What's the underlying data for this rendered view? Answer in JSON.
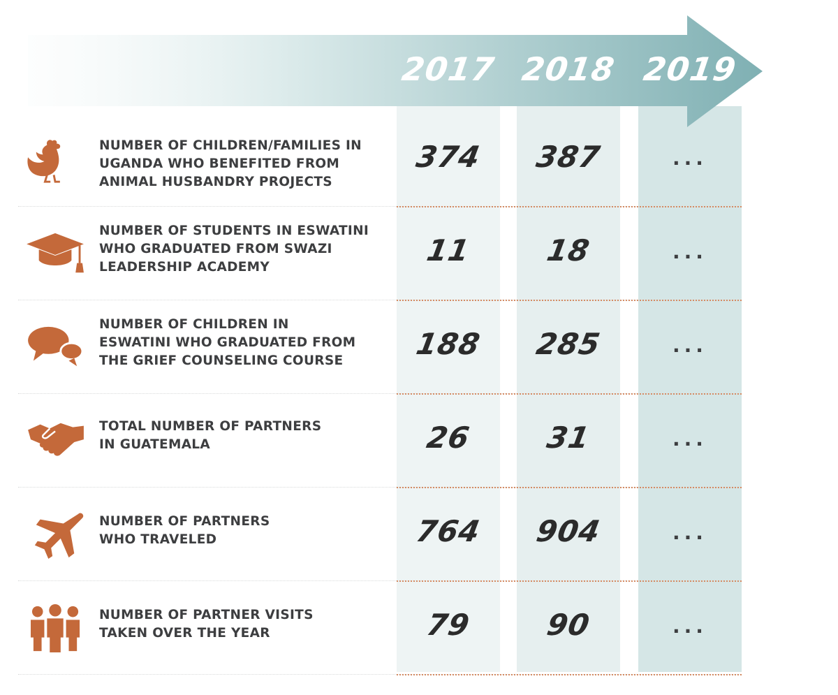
{
  "colors": {
    "accent": "#c4693a",
    "arrow_start": "#f3f8f8",
    "arrow_end": "#7fb0b3",
    "text": "#3d3e40"
  },
  "chart_data": {
    "type": "table",
    "columns": [
      "2017",
      "2018",
      "2019"
    ],
    "rows": [
      {
        "icon": "chicken-icon",
        "label": "NUMBER OF CHILDREN/FAMILIES IN\nUGANDA WHO BENEFITED FROM\nANIMAL HUSBANDRY PROJECTS",
        "values": [
          "374",
          "387",
          "..."
        ]
      },
      {
        "icon": "graduation-cap-icon",
        "label": "NUMBER OF STUDENTS IN ESWATINI\nWHO GRADUATED FROM SWAZI\nLEADERSHIP ACADEMY",
        "values": [
          "11",
          "18",
          "..."
        ]
      },
      {
        "icon": "speech-bubbles-icon",
        "label": "NUMBER OF CHILDREN IN\nESWATINI WHO GRADUATED FROM\nTHE GRIEF COUNSELING COURSE",
        "values": [
          "188",
          "285",
          "..."
        ]
      },
      {
        "icon": "handshake-icon",
        "label": "TOTAL NUMBER OF PARTNERS\nIN GUATEMALA",
        "values": [
          "26",
          "31",
          "..."
        ]
      },
      {
        "icon": "airplane-icon",
        "label": "NUMBER OF PARTNERS\nWHO TRAVELED",
        "values": [
          "764",
          "904",
          "..."
        ]
      },
      {
        "icon": "group-of-people-icon",
        "label": "NUMBER OF PARTNER VISITS\nTAKEN OVER THE YEAR",
        "values": [
          "79",
          "90",
          "..."
        ]
      }
    ]
  }
}
